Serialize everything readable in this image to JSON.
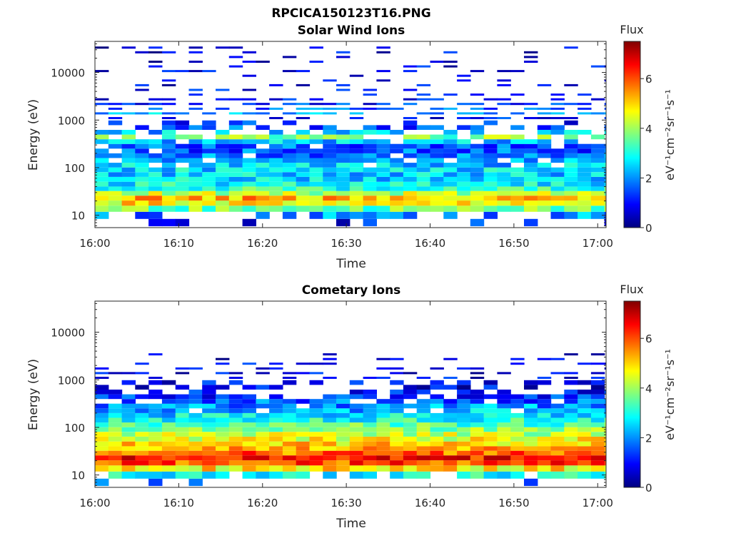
{
  "figure": {
    "title": "RPCICA150123T16.PNG"
  },
  "colormap": [
    "#00007f",
    "#0000ff",
    "#007fff",
    "#00ffff",
    "#7fff7f",
    "#ffff00",
    "#ff7f00",
    "#ff0000",
    "#7f0000"
  ],
  "chart_data": [
    {
      "type": "heatmap",
      "title": "Solar Wind Ions",
      "xlabel": "Time",
      "ylabel": "Energy (eV)",
      "x_range": [
        "16:00",
        "17:01"
      ],
      "x_ticks": [
        "16:00",
        "16:10",
        "16:20",
        "16:30",
        "16:40",
        "16:50",
        "17:00"
      ],
      "y_scale": "log",
      "y_range": [
        5.5,
        45000
      ],
      "y_ticks": [
        {
          "v": 10,
          "l": "10"
        },
        {
          "v": 100,
          "l": "100"
        },
        {
          "v": 1000,
          "l": "1000"
        },
        {
          "v": 10000,
          "l": "10000"
        }
      ],
      "colorbar": {
        "title": "Flux",
        "label": "eV⁻¹cm⁻²sr⁻¹s⁻¹",
        "range": [
          0,
          7.5
        ],
        "ticks": [
          "0",
          "2",
          "4",
          "6"
        ]
      },
      "bins": {
        "time_step_min": 1.6,
        "energy_bins_eV": [
          7,
          10,
          14,
          18,
          23,
          29,
          36,
          45,
          57,
          72,
          90,
          113,
          142,
          178,
          224,
          281,
          353,
          443,
          556,
          698,
          876,
          1100,
          1380,
          1730,
          2180,
          2730,
          3430,
          4300,
          5400,
          6780,
          8510,
          10700,
          13400,
          16800,
          21100,
          26500,
          33300
        ],
        "band_flux_typical": [
          1,
          2,
          3.6,
          4.8,
          5.2,
          4.2,
          3.2,
          2.8,
          2.6,
          2.5,
          2.6,
          2.4,
          2.2,
          1.8,
          1.6,
          1.6,
          2.4,
          3.8,
          2.4,
          1.6,
          1.2,
          1,
          2.2,
          1.6,
          1.2,
          1,
          0.9,
          0.9,
          0.9,
          0.8,
          0.8,
          0.8,
          0.8,
          0.8,
          0.8,
          0.8,
          0.7
        ],
        "band_coverage": [
          0.15,
          0.45,
          1,
          1,
          1,
          1,
          1,
          1,
          1,
          1,
          1,
          0.9,
          0.9,
          0.9,
          0.9,
          0.85,
          0.8,
          0.7,
          0.6,
          0.45,
          0.25,
          0.35,
          0.7,
          0.6,
          0.65,
          0.4,
          0.2,
          0.18,
          0.18,
          0.15,
          0.15,
          0.2,
          0.18,
          0.18,
          0.22,
          0.25,
          0.2
        ]
      }
    },
    {
      "type": "heatmap",
      "title": "Cometary Ions",
      "xlabel": "Time",
      "ylabel": "Energy (eV)",
      "x_range": [
        "16:00",
        "17:01"
      ],
      "x_ticks": [
        "16:00",
        "16:10",
        "16:20",
        "16:30",
        "16:40",
        "16:50",
        "17:00"
      ],
      "y_scale": "log",
      "y_range": [
        5.5,
        45000
      ],
      "y_ticks": [
        {
          "v": 10,
          "l": "10"
        },
        {
          "v": 100,
          "l": "100"
        },
        {
          "v": 1000,
          "l": "1000"
        },
        {
          "v": 10000,
          "l": "10000"
        }
      ],
      "colorbar": {
        "title": "Flux",
        "label": "eV⁻¹cm⁻²sr⁻¹s⁻¹",
        "range": [
          0,
          7.5
        ],
        "ticks": [
          "0",
          "2",
          "4",
          "6"
        ]
      },
      "bins": {
        "time_step_min": 1.6,
        "energy_bins_eV": [
          7,
          10,
          14,
          18,
          23,
          29,
          36,
          45,
          57,
          72,
          90,
          113,
          142,
          178,
          224,
          281,
          353,
          443,
          556,
          698,
          876,
          1100,
          1380,
          1730,
          2180,
          2730,
          3430
        ],
        "band_flux_typical": [
          1.8,
          2.8,
          4.8,
          6,
          6.4,
          5.8,
          5.2,
          5,
          4.6,
          4.2,
          3.8,
          3.4,
          3,
          2.6,
          2.3,
          2,
          1.6,
          1.3,
          1,
          0.9,
          0.9,
          0.9,
          0.8,
          0.8,
          0.8,
          0.8,
          0.7
        ],
        "band_coverage": [
          0.1,
          0.7,
          1,
          1,
          1,
          1,
          1,
          1,
          1,
          1,
          1,
          1,
          1,
          1,
          0.95,
          0.85,
          0.75,
          0.6,
          0.45,
          0.4,
          0.35,
          0.4,
          0.35,
          0.3,
          0.35,
          0.2,
          0.1
        ]
      }
    }
  ]
}
